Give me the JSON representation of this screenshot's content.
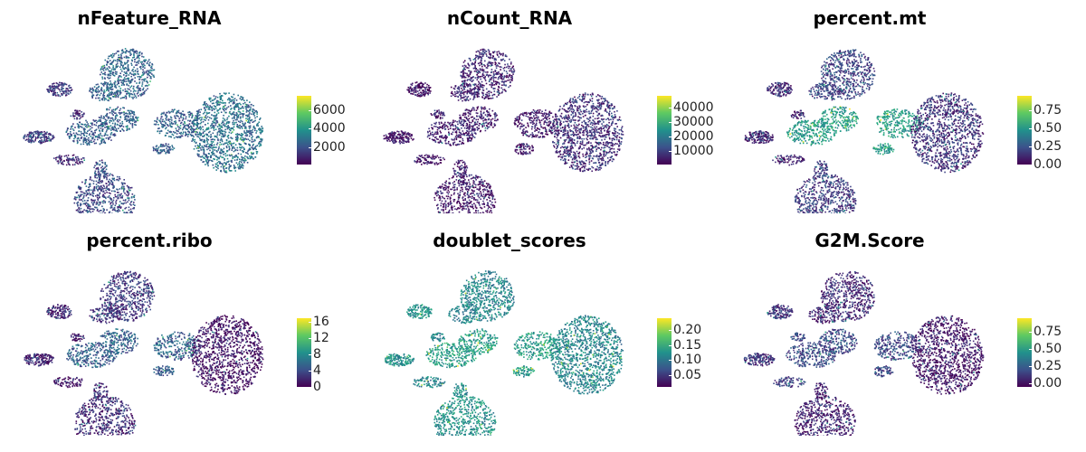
{
  "chart_data": [
    {
      "type": "scatter",
      "title": "nFeature_RNA",
      "colormap": "viridis",
      "legend_placement": "right",
      "color_range": [
        200,
        7500
      ],
      "legend_ticks": [
        2000,
        4000,
        6000
      ],
      "legend_tick_labels": [
        "2000",
        "4000",
        "6000"
      ],
      "region_values": {
        "top_cluster": 0.32,
        "left_arm": 0.18,
        "left_small": 0.12,
        "center": 0.3,
        "bottom_cluster": 0.22,
        "right_cluster": 0.36
      }
    },
    {
      "type": "scatter",
      "title": "nCount_RNA",
      "colormap": "viridis",
      "legend_placement": "right",
      "color_range": [
        500,
        48000
      ],
      "legend_ticks": [
        10000,
        20000,
        30000,
        40000
      ],
      "legend_tick_labels": [
        "10000",
        "20000",
        "30000",
        "40000"
      ],
      "region_values": {
        "top_cluster": 0.1,
        "left_arm": 0.05,
        "left_small": 0.04,
        "center": 0.08,
        "bottom_cluster": 0.06,
        "right_cluster": 0.14
      }
    },
    {
      "type": "scatter",
      "title": "percent.mt",
      "colormap": "viridis",
      "legend_placement": "right",
      "color_range": [
        0,
        0.95
      ],
      "legend_ticks": [
        0,
        0.25,
        0.5,
        0.75
      ],
      "legend_tick_labels": [
        "0.00",
        "0.25",
        "0.50",
        "0.75"
      ],
      "region_values": {
        "top_cluster": 0.2,
        "left_arm": 0.12,
        "left_small": 0.1,
        "center": 0.55,
        "bottom_cluster": 0.18,
        "right_cluster": 0.15
      }
    },
    {
      "type": "scatter",
      "title": "percent.ribo",
      "colormap": "viridis",
      "legend_placement": "right",
      "color_range": [
        0,
        17
      ],
      "legend_ticks": [
        0,
        4,
        8,
        12,
        16
      ],
      "legend_tick_labels": [
        "0",
        "4",
        "8",
        "12",
        "16"
      ],
      "region_values": {
        "top_cluster": 0.16,
        "left_arm": 0.1,
        "left_small": 0.08,
        "center": 0.3,
        "bottom_cluster": 0.12,
        "right_cluster": 0.04
      }
    },
    {
      "type": "scatter",
      "title": "doublet_scores",
      "colormap": "viridis",
      "legend_placement": "right",
      "color_range": [
        0.01,
        0.24
      ],
      "legend_ticks": [
        0.05,
        0.1,
        0.15,
        0.2
      ],
      "legend_tick_labels": [
        "0.05",
        "0.10",
        "0.15",
        "0.20"
      ],
      "region_values": {
        "top_cluster": 0.45,
        "left_arm": 0.5,
        "left_small": 0.45,
        "center": 0.55,
        "bottom_cluster": 0.5,
        "right_cluster": 0.45
      }
    },
    {
      "type": "scatter",
      "title": "G2M.Score",
      "colormap": "viridis",
      "legend_placement": "right",
      "color_range": [
        -0.05,
        0.95
      ],
      "legend_ticks": [
        0,
        0.25,
        0.5,
        0.75
      ],
      "legend_tick_labels": [
        "0.00",
        "0.25",
        "0.50",
        "0.75"
      ],
      "region_values": {
        "top_cluster": 0.12,
        "left_arm": 0.15,
        "left_small": 0.2,
        "center": 0.22,
        "bottom_cluster": 0.08,
        "right_cluster": 0.05
      }
    }
  ]
}
